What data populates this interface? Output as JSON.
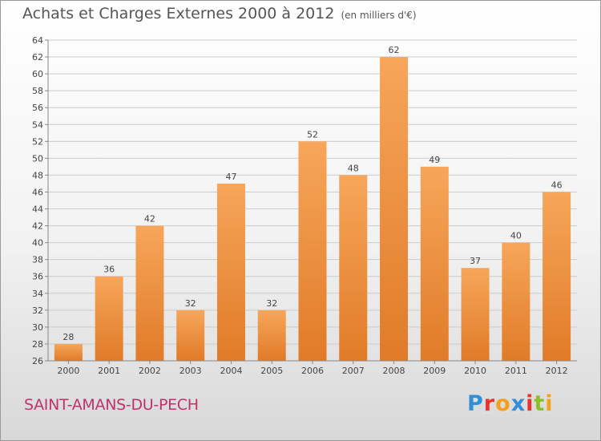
{
  "title": "Achats et Charges Externes 2000 à 2012",
  "unit": "(en milliers d'€)",
  "city": "SAINT-AMANS-DU-PECH",
  "brand": {
    "letters": [
      "P",
      "r",
      "o",
      "x",
      "i",
      "t",
      "i"
    ]
  },
  "colors": {
    "bar_light": "#f7a65a",
    "bar_dark": "#e07b28",
    "grid": "#cccccc",
    "city": "#c0336a"
  },
  "chart_data": {
    "type": "bar",
    "categories": [
      "2000",
      "2001",
      "2002",
      "2003",
      "2004",
      "2005",
      "2006",
      "2007",
      "2008",
      "2009",
      "2010",
      "2011",
      "2012"
    ],
    "values": [
      28,
      36,
      42,
      32,
      47,
      32,
      52,
      48,
      62,
      49,
      37,
      40,
      46
    ],
    "ylim": [
      26,
      64
    ],
    "ytick_step": 2,
    "grid": true
  }
}
